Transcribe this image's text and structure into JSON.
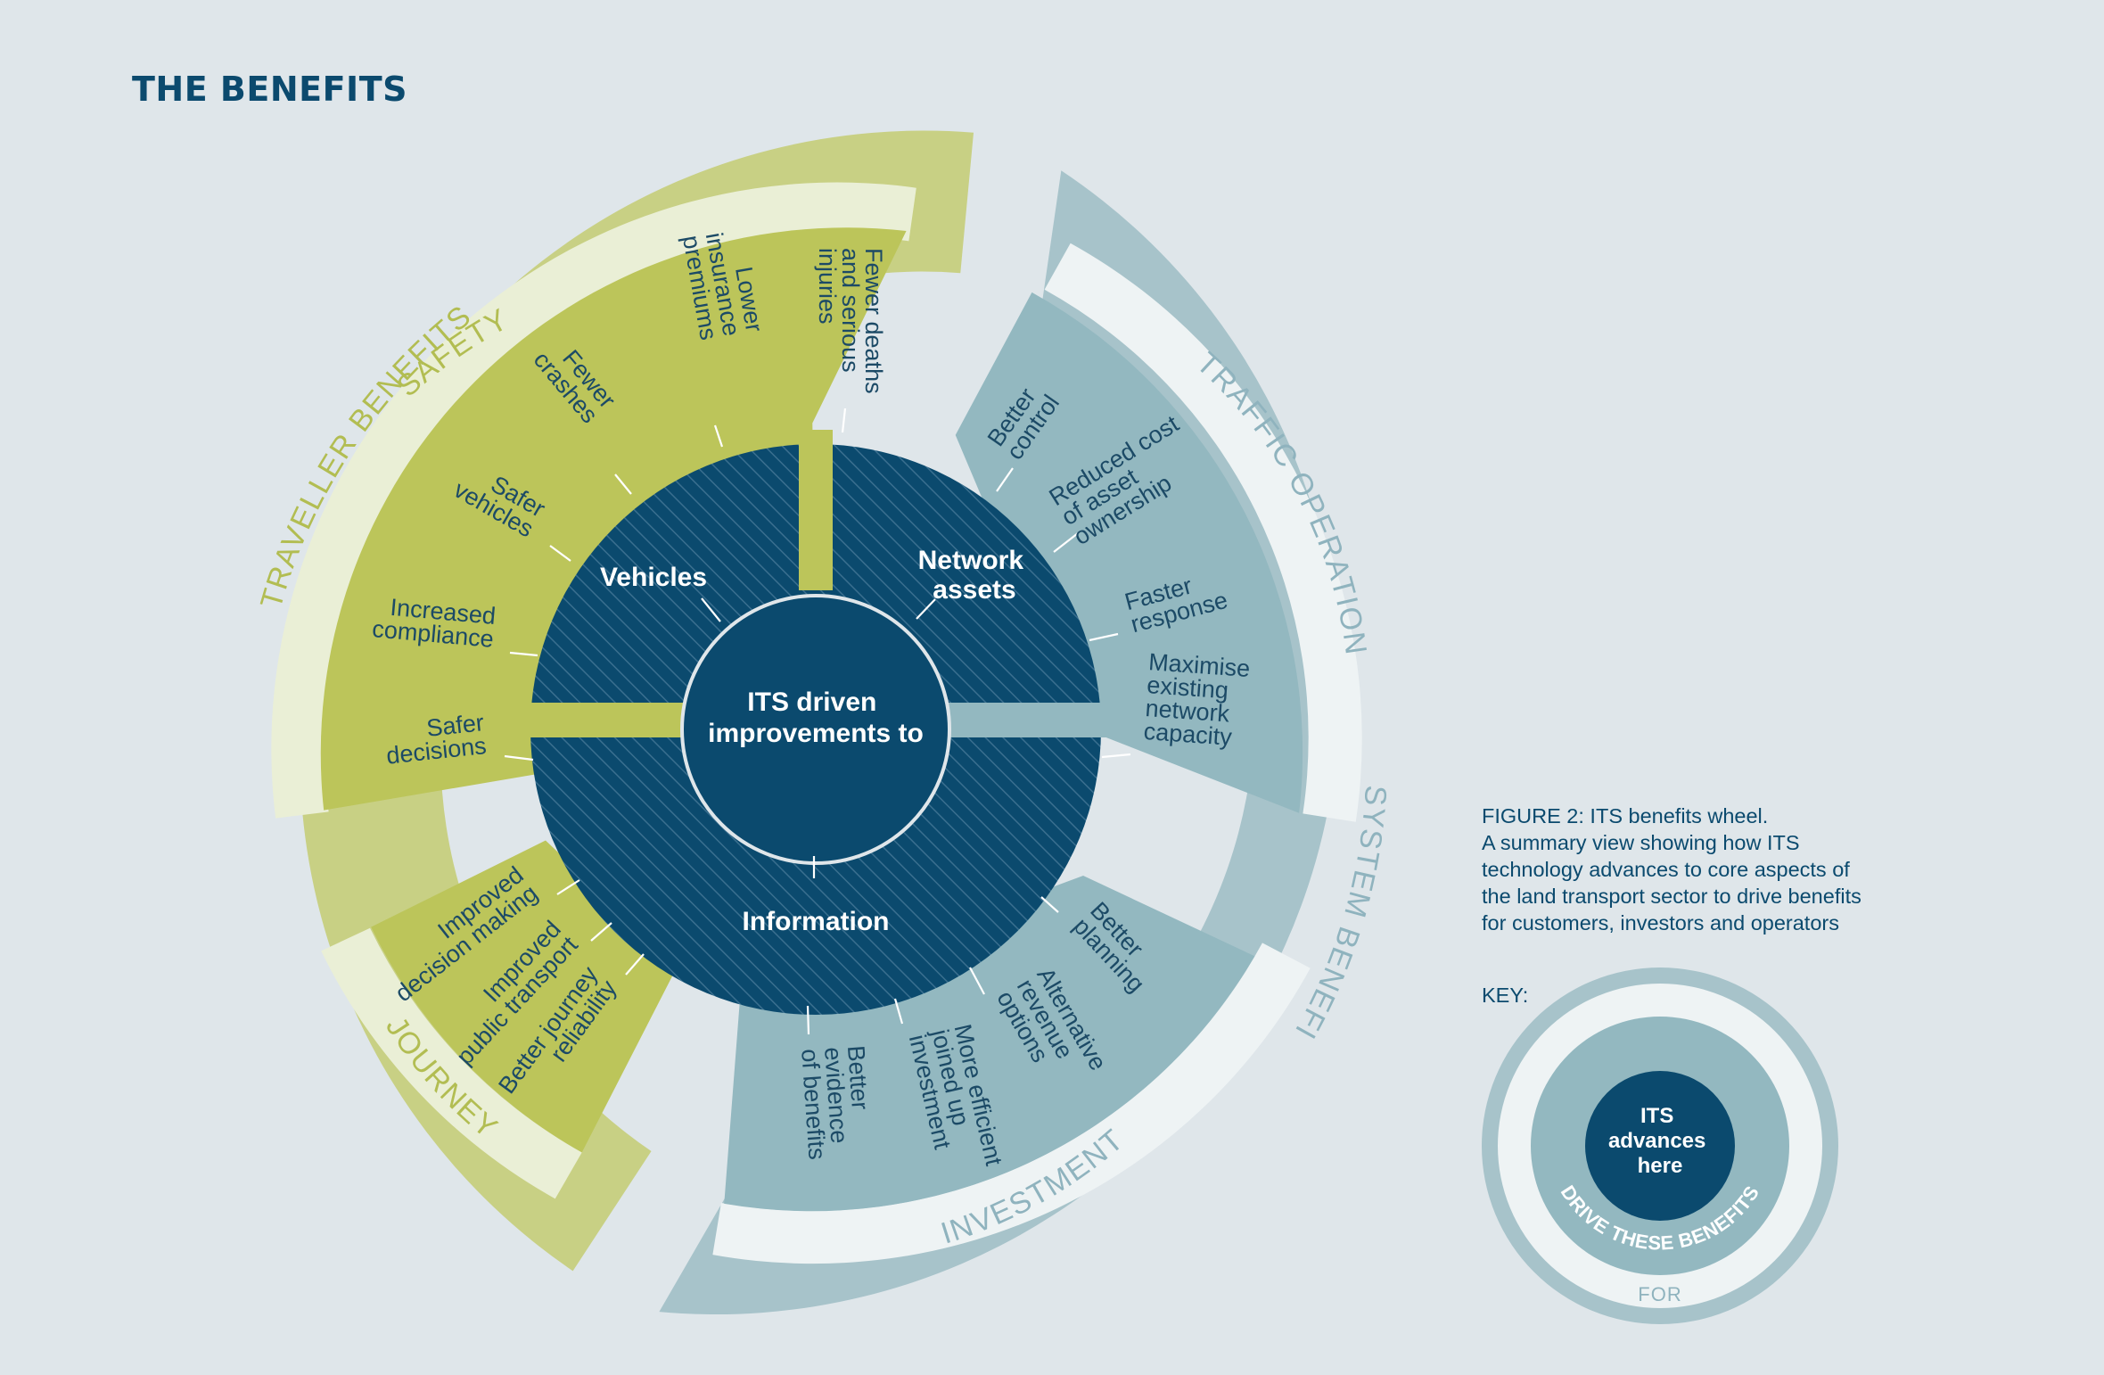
{
  "page": {
    "title": "THE BENEFITS"
  },
  "colors": {
    "background": "#dfe6ea",
    "green_outer": "#c8d084",
    "green_light": "#eaefd6",
    "green_mid": "#bcc55a",
    "green_label": "#b2bd52",
    "blue_outer": "#a7c3ca",
    "blue_light": "#eef3f4",
    "blue_mid": "#93b8c0",
    "navy": "#0b4a6e",
    "text": "#1c4a66"
  },
  "wheel": {
    "outer_rings": {
      "traveller": "TRAVELLER BENEFITS",
      "system": "SYSTEM BENEFITS"
    },
    "categories": {
      "safety": "SAFETY",
      "journey": "JOURNEY",
      "traffic": "TRAFFIC OPERATIONS",
      "investment": "INVESTMENT"
    },
    "core": {
      "center_line1": "ITS driven",
      "center_line2": "improvements to",
      "vehicles": "Vehicles",
      "network_line1": "Network",
      "network_line2": "assets",
      "information": "Information"
    },
    "benefits": {
      "safety": [
        {
          "id": "safer-decisions",
          "lines": [
            "Safer",
            "decisions"
          ]
        },
        {
          "id": "increased-compliance",
          "lines": [
            "Increased",
            "compliance"
          ]
        },
        {
          "id": "safer-vehicles",
          "lines": [
            "Safer",
            "vehicles"
          ]
        },
        {
          "id": "fewer-crashes",
          "lines": [
            "Fewer",
            "crashes"
          ]
        },
        {
          "id": "lower-insurance",
          "lines": [
            "Lower",
            "insurance",
            "premiums"
          ]
        },
        {
          "id": "fewer-deaths",
          "lines": [
            "Fewer deaths",
            "and serious",
            "injuries"
          ]
        }
      ],
      "traffic": [
        {
          "id": "better-control",
          "lines": [
            "Better",
            "control"
          ]
        },
        {
          "id": "reduced-cost",
          "lines": [
            "Reduced cost",
            "of asset",
            "ownership"
          ]
        },
        {
          "id": "faster-response",
          "lines": [
            "Faster",
            "response"
          ]
        },
        {
          "id": "maximise-capacity",
          "lines": [
            "Maximise",
            "existing",
            "network",
            "capacity"
          ]
        }
      ],
      "investment": [
        {
          "id": "better-planning",
          "lines": [
            "Better",
            "planning"
          ]
        },
        {
          "id": "alternative-revenue",
          "lines": [
            "Alternative",
            "revenue",
            "options"
          ]
        },
        {
          "id": "more-efficient",
          "lines": [
            "More efficient",
            "joined up",
            "investment"
          ]
        },
        {
          "id": "better-evidence",
          "lines": [
            "Better",
            "evidence",
            "of benefits"
          ]
        }
      ],
      "journey": [
        {
          "id": "improved-decision",
          "lines": [
            "Improved",
            "decision making"
          ]
        },
        {
          "id": "improved-transport",
          "lines": [
            "Improved",
            "public transport"
          ]
        },
        {
          "id": "better-reliability",
          "lines": [
            "Better journey",
            "reliability"
          ]
        }
      ]
    }
  },
  "caption": {
    "lines": [
      "FIGURE 2: ITS benefits wheel.",
      "A summary view showing how ITS",
      "technology advances to core aspects of",
      "the land transport sector to drive benefits",
      "for customers, investors and operators"
    ]
  },
  "key": {
    "label": "KEY:",
    "inner_line1": "ITS",
    "inner_line2": "advances",
    "inner_line3": "here",
    "ring": "DRIVE THESE BENEFITS",
    "outer": "FOR"
  }
}
